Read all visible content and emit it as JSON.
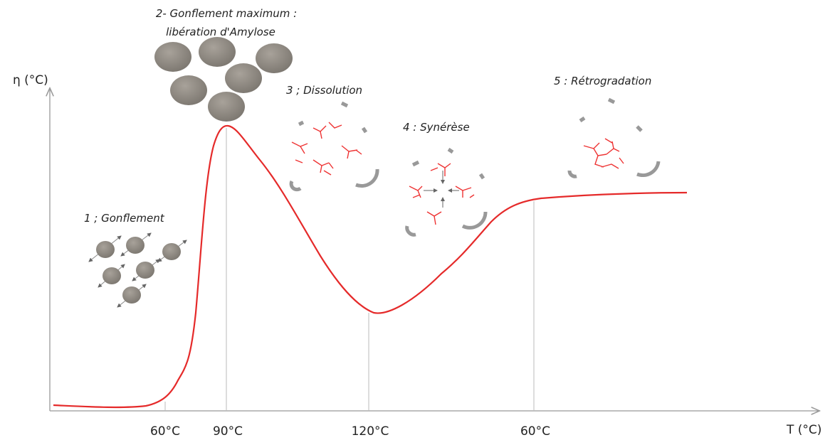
{
  "axes": {
    "y_label": "η (°C)",
    "x_label": "T (°C)",
    "x_ticks": [
      "60°C",
      "90°C",
      "120°C",
      "60°C"
    ]
  },
  "stages": [
    {
      "lines": [
        "1 ; Gonflement"
      ]
    },
    {
      "lines": [
        "2- Gonflement maximum :",
        "libération d'Amylose"
      ]
    },
    {
      "lines": [
        "3 ; Dissolution"
      ]
    },
    {
      "lines": [
        "4 : Synérèse"
      ]
    },
    {
      "lines": [
        "5 : Rétrogradation"
      ]
    }
  ]
}
